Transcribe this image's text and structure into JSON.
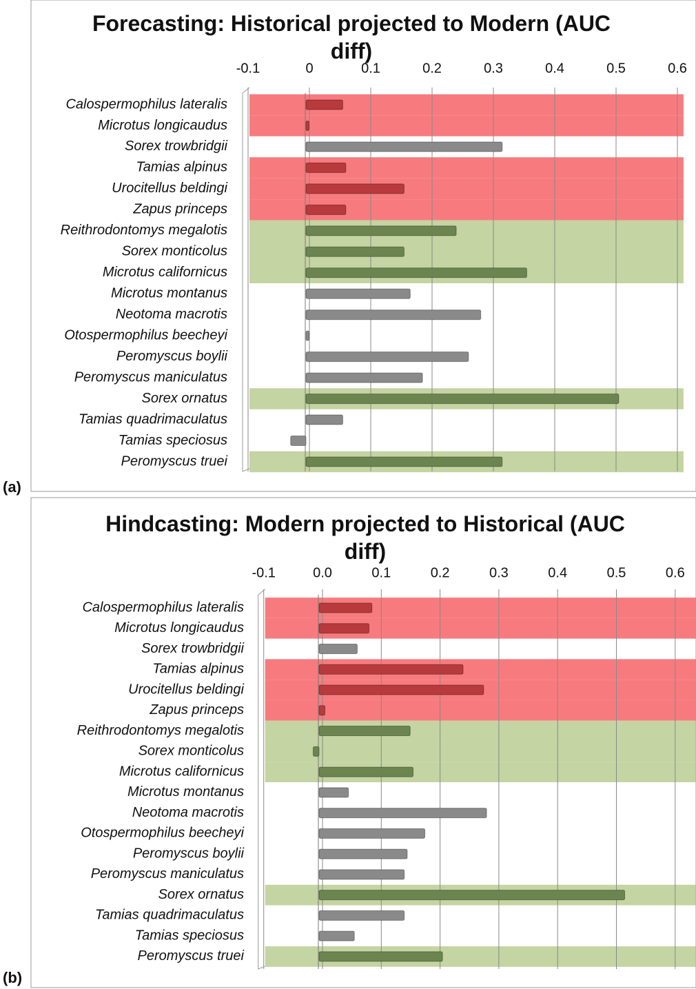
{
  "chart_data": [
    {
      "type": "bar",
      "orientation": "horizontal",
      "panel_label": "(a)",
      "title": "Forecasting: Historical projected to Modern (AUC diff)",
      "categories": [
        "Calospermophilus lateralis",
        "Microtus longicaudus",
        "Sorex trowbridgii",
        "Tamias alpinus",
        "Urocitellus beldingi",
        "Zapus princeps",
        "Reithrodontomys megalotis",
        "Sorex monticolus",
        "Microtus californicus",
        "Microtus montanus",
        "Neotoma macrotis",
        "Otospermophilus beecheyi",
        "Peromyscus boylii",
        "Peromyscus maniculatus",
        "Sorex ornatus",
        "Tamias quadrimaculatus",
        "Tamias speciosus",
        "Peromyscus truei"
      ],
      "values": [
        0.06,
        0.005,
        0.32,
        0.065,
        0.16,
        0.065,
        0.245,
        0.16,
        0.36,
        0.17,
        0.285,
        0.005,
        0.265,
        0.19,
        0.51,
        0.06,
        -0.025,
        0.32
      ],
      "colors": [
        "#b83a3c",
        "#b83a3c",
        "#8a8a8a",
        "#b83a3c",
        "#b83a3c",
        "#b83a3c",
        "#6c8550",
        "#6c8550",
        "#6c8550",
        "#8a8a8a",
        "#8a8a8a",
        "#8a8a8a",
        "#8a8a8a",
        "#8a8a8a",
        "#6c8550",
        "#8a8a8a",
        "#8a8a8a",
        "#6c8550"
      ],
      "band_colors": [
        "#f77b7e",
        "#f77b7e",
        null,
        "#f77b7e",
        "#f77b7e",
        "#f77b7e",
        "#c4d4a2",
        "#c4d4a2",
        "#c4d4a2",
        null,
        null,
        null,
        null,
        null,
        "#c4d4a2",
        null,
        null,
        "#c4d4a2"
      ],
      "xlim": [
        -0.1,
        0.61
      ],
      "xticks": [
        -0.1,
        0,
        0.1,
        0.2,
        0.3,
        0.4,
        0.5,
        0.6
      ],
      "grid": true
    },
    {
      "type": "bar",
      "orientation": "horizontal",
      "panel_label": "(b)",
      "title": "Hindcasting: Modern projected to Historical (AUC diff)",
      "categories": [
        "Calospermophilus lateralis",
        "Microtus longicaudus",
        "Sorex trowbridgii",
        "Tamias alpinus",
        "Urocitellus beldingi",
        "Zapus princeps",
        "Reithrodontomys megalotis",
        "Sorex monticolus",
        "Microtus californicus",
        "Microtus montanus",
        "Neotoma macrotis",
        "Otospermophilus beecheyi",
        "Peromyscus boylii",
        "Peromyscus maniculatus",
        "Sorex ornatus",
        "Tamias quadrimaculatus",
        "Tamias speciosus",
        "Peromyscus truei"
      ],
      "values": [
        0.09,
        0.085,
        0.065,
        0.245,
        0.28,
        0.01,
        0.155,
        -0.01,
        0.16,
        0.05,
        0.285,
        0.18,
        0.15,
        0.145,
        0.52,
        0.145,
        0.06,
        0.21
      ],
      "colors": [
        "#b83a3c",
        "#b83a3c",
        "#8a8a8a",
        "#b83a3c",
        "#b83a3c",
        "#b83a3c",
        "#6c8550",
        "#6c8550",
        "#6c8550",
        "#8a8a8a",
        "#8a8a8a",
        "#8a8a8a",
        "#8a8a8a",
        "#8a8a8a",
        "#6c8550",
        "#8a8a8a",
        "#8a8a8a",
        "#6c8550"
      ],
      "band_colors": [
        "#f77b7e",
        "#f77b7e",
        null,
        "#f77b7e",
        "#f77b7e",
        "#f77b7e",
        "#c4d4a2",
        "#c4d4a2",
        "#c4d4a2",
        null,
        null,
        null,
        null,
        null,
        "#c4d4a2",
        null,
        null,
        "#c4d4a2"
      ],
      "xlim": [
        -0.1,
        0.635
      ],
      "xticks": [
        -0.1,
        {
          "value": 0,
          "label": "0.0"
        },
        0.1,
        0.2,
        0.3,
        0.4,
        0.5,
        0.6
      ],
      "grid": true
    }
  ]
}
